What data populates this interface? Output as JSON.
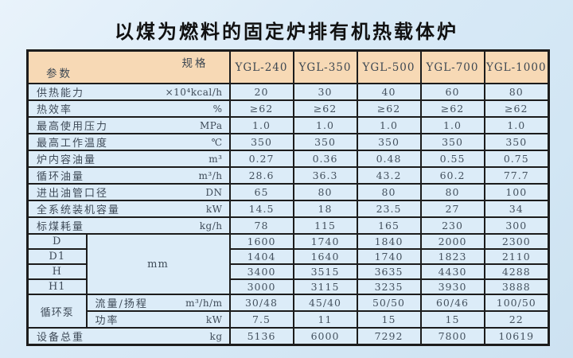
{
  "title": "以煤为燃料的固定炉排有机热载体炉",
  "colors": {
    "page_bg": "#d9eaf7",
    "header_bg": "#f7d9b5",
    "cell_bg": "#dcecf8",
    "border": "#1c1c1c",
    "text": "#44515e"
  },
  "table": {
    "corner": {
      "top_right": "规格",
      "bottom_left": "参数"
    },
    "models": [
      "YGL-240",
      "YGL-350",
      "YGL-500",
      "YGL-700",
      "YGL-1000"
    ],
    "rows": [
      {
        "name": "供热能力",
        "unit": "×10⁴kcal/h",
        "values": [
          "20",
          "30",
          "40",
          "60",
          "80"
        ]
      },
      {
        "name": "热效率",
        "unit": "%",
        "values": [
          "≥62",
          "≥62",
          "≥62",
          "≥62",
          "≥62"
        ]
      },
      {
        "name": "最高使用压力",
        "unit": "MPa",
        "values": [
          "1.0",
          "1.0",
          "1.0",
          "1.0",
          "1.0"
        ]
      },
      {
        "name": "最高工作温度",
        "unit": "℃",
        "values": [
          "350",
          "350",
          "350",
          "350",
          "350"
        ]
      },
      {
        "name": "炉内容油量",
        "unit": "m³",
        "values": [
          "0.27",
          "0.36",
          "0.48",
          "0.55",
          "0.75"
        ]
      },
      {
        "name": "循环油量",
        "unit": "m³/h",
        "values": [
          "28.6",
          "36.3",
          "43.2",
          "60.2",
          "77.7"
        ]
      },
      {
        "name": "进出油管口径",
        "unit": "DN",
        "values": [
          "65",
          "80",
          "80",
          "80",
          "100"
        ]
      },
      {
        "name": "全系统装机容量",
        "unit": "kW",
        "values": [
          "14.5",
          "18",
          "23.5",
          "27",
          "34"
        ]
      },
      {
        "name": "标煤耗量",
        "unit": "kg/h",
        "values": [
          "78",
          "115",
          "165",
          "230",
          "300"
        ]
      }
    ],
    "dimension_rows": {
      "unit": "mm",
      "rows": [
        {
          "name": "D",
          "values": [
            "1600",
            "1740",
            "1840",
            "2000",
            "2300"
          ]
        },
        {
          "name": "D1",
          "values": [
            "1404",
            "1640",
            "1740",
            "1823",
            "2110"
          ]
        },
        {
          "name": "H",
          "values": [
            "3400",
            "3515",
            "3635",
            "4430",
            "4288"
          ]
        },
        {
          "name": "H1",
          "values": [
            "3000",
            "3115",
            "3235",
            "3930",
            "3888"
          ]
        }
      ]
    },
    "pump": {
      "name": "循环泵",
      "rows": [
        {
          "name": "流量/扬程",
          "unit": "m³/h/m",
          "values": [
            "30/48",
            "45/40",
            "50/50",
            "60/46",
            "100/50"
          ]
        },
        {
          "name": "功率",
          "unit": "kW",
          "values": [
            "7.5",
            "11",
            "15",
            "15",
            "22"
          ]
        }
      ]
    },
    "total_row": {
      "name": "设备总重",
      "unit": "kg",
      "values": [
        "5136",
        "6000",
        "7292",
        "7800",
        "10619"
      ]
    }
  }
}
